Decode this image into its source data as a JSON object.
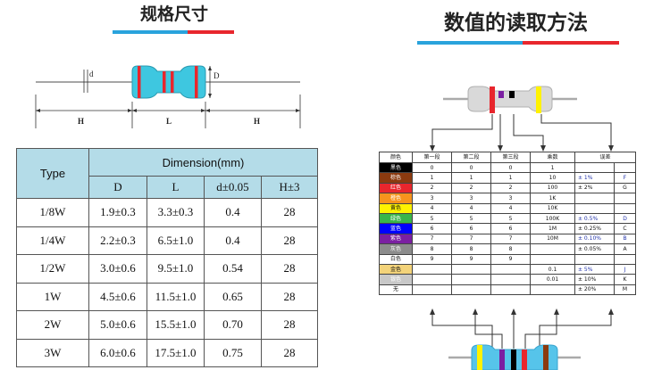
{
  "left_section": {
    "title": "规格尺寸",
    "bar_colors": [
      "#29a3dc",
      "#e8262d"
    ]
  },
  "right_section": {
    "title": "数值的读取方法",
    "bar_colors": [
      "#29a3dc",
      "#e8262d"
    ]
  },
  "dimension_diagram": {
    "labels": {
      "d": "d",
      "D": "D",
      "H_left": "H",
      "L": "L",
      "H_right": "H"
    }
  },
  "spec_table": {
    "type_header": "Type",
    "dimension_header": "Dimension(mm)",
    "columns": [
      "D",
      "L",
      "d±0.05",
      "H±3"
    ],
    "rows": [
      {
        "type": "1/8W",
        "D": "1.9±0.3",
        "L": "3.3±0.3",
        "d": "0.4",
        "H": "28"
      },
      {
        "type": "1/4W",
        "D": "2.2±0.3",
        "L": "6.5±1.0",
        "d": "0.4",
        "H": "28"
      },
      {
        "type": "1/2W",
        "D": "3.0±0.6",
        "L": "9.5±1.0",
        "d": "0.54",
        "H": "28"
      },
      {
        "type": "1W",
        "D": "4.5±0.6",
        "L": "11.5±1.0",
        "d": "0.65",
        "H": "28"
      },
      {
        "type": "2W",
        "D": "5.0±0.6",
        "L": "15.5±1.0",
        "d": "0.70",
        "H": "28"
      },
      {
        "type": "3W",
        "D": "6.0±0.6",
        "L": "17.5±1.0",
        "d": "0.75",
        "H": "28"
      }
    ]
  },
  "color_code_table": {
    "headers": [
      "颜色",
      "第一段",
      "第二段",
      "第三段",
      "乘数",
      "误差"
    ],
    "rows": [
      {
        "color": "黑色",
        "swatch": "#000000",
        "text_color": "#ffffff",
        "c1": "0",
        "c2": "0",
        "c3": "0",
        "mult": "1",
        "tol": "",
        "tol_code": ""
      },
      {
        "color": "棕色",
        "swatch": "#8b3a0f",
        "text_color": "#ffffff",
        "c1": "1",
        "c2": "1",
        "c3": "1",
        "mult": "10",
        "tol": "± 1%",
        "tol_code": "F",
        "tol_blue": true
      },
      {
        "color": "红色",
        "swatch": "#e8262d",
        "text_color": "#ffffff",
        "c1": "2",
        "c2": "2",
        "c3": "2",
        "mult": "100",
        "tol": "± 2%",
        "tol_code": "G",
        "tol_blue": false
      },
      {
        "color": "橙色",
        "swatch": "#f7941d",
        "text_color": "#ffffff",
        "c1": "3",
        "c2": "3",
        "c3": "3",
        "mult": "1K",
        "tol": "",
        "tol_code": ""
      },
      {
        "color": "黄色",
        "swatch": "#fff200",
        "text_color": "#111111",
        "c1": "4",
        "c2": "4",
        "c3": "4",
        "mult": "10K",
        "tol": "",
        "tol_code": ""
      },
      {
        "color": "绿色",
        "swatch": "#39b54a",
        "text_color": "#ffffff",
        "c1": "5",
        "c2": "5",
        "c3": "5",
        "mult": "100K",
        "tol": "± 0.5%",
        "tol_code": "D",
        "tol_blue": true
      },
      {
        "color": "蓝色",
        "swatch": "#0000ff",
        "text_color": "#ffffff",
        "c1": "6",
        "c2": "6",
        "c3": "6",
        "mult": "1M",
        "tol": "± 0.25%",
        "tol_code": "C",
        "tol_blue": false
      },
      {
        "color": "紫色",
        "swatch": "#7b1fa2",
        "text_color": "#ffffff",
        "c1": "7",
        "c2": "7",
        "c3": "7",
        "mult": "10M",
        "tol": "± 0.10%",
        "tol_code": "B",
        "tol_blue": true
      },
      {
        "color": "灰色",
        "swatch": "#8c8c8c",
        "text_color": "#ffffff",
        "c1": "8",
        "c2": "8",
        "c3": "8",
        "mult": "",
        "tol": "± 0.05%",
        "tol_code": "A",
        "tol_blue": false
      },
      {
        "color": "白色",
        "swatch": "#ffffff",
        "text_color": "#111111",
        "c1": "9",
        "c2": "9",
        "c3": "9",
        "mult": "",
        "tol": "",
        "tol_code": ""
      },
      {
        "color": "金色",
        "swatch": "#f3d37a",
        "text_color": "#111111",
        "c1": "",
        "c2": "",
        "c3": "",
        "mult": "0.1",
        "tol": "± 5%",
        "tol_code": "J",
        "tol_blue": true
      },
      {
        "color": "银色",
        "swatch": "#c8c8c8",
        "text_color": "#ffffff",
        "c1": "",
        "c2": "",
        "c3": "",
        "mult": "0.01",
        "tol": "± 10%",
        "tol_code": "K",
        "tol_blue": false
      },
      {
        "color": "无",
        "swatch": "#ffffff",
        "text_color": "#111111",
        "c1": "",
        "c2": "",
        "c3": "",
        "mult": "",
        "tol": "± 20%",
        "tol_code": "M",
        "tol_blue": false
      }
    ]
  },
  "resistor_top_bands": [
    "#e8262d",
    "#7b1fa2",
    "#000000",
    "#fff200"
  ],
  "resistor_bottom_bands": [
    "#fff200",
    "#7b1fa2",
    "#000000",
    "#e8262d",
    "#8b3a0f"
  ]
}
